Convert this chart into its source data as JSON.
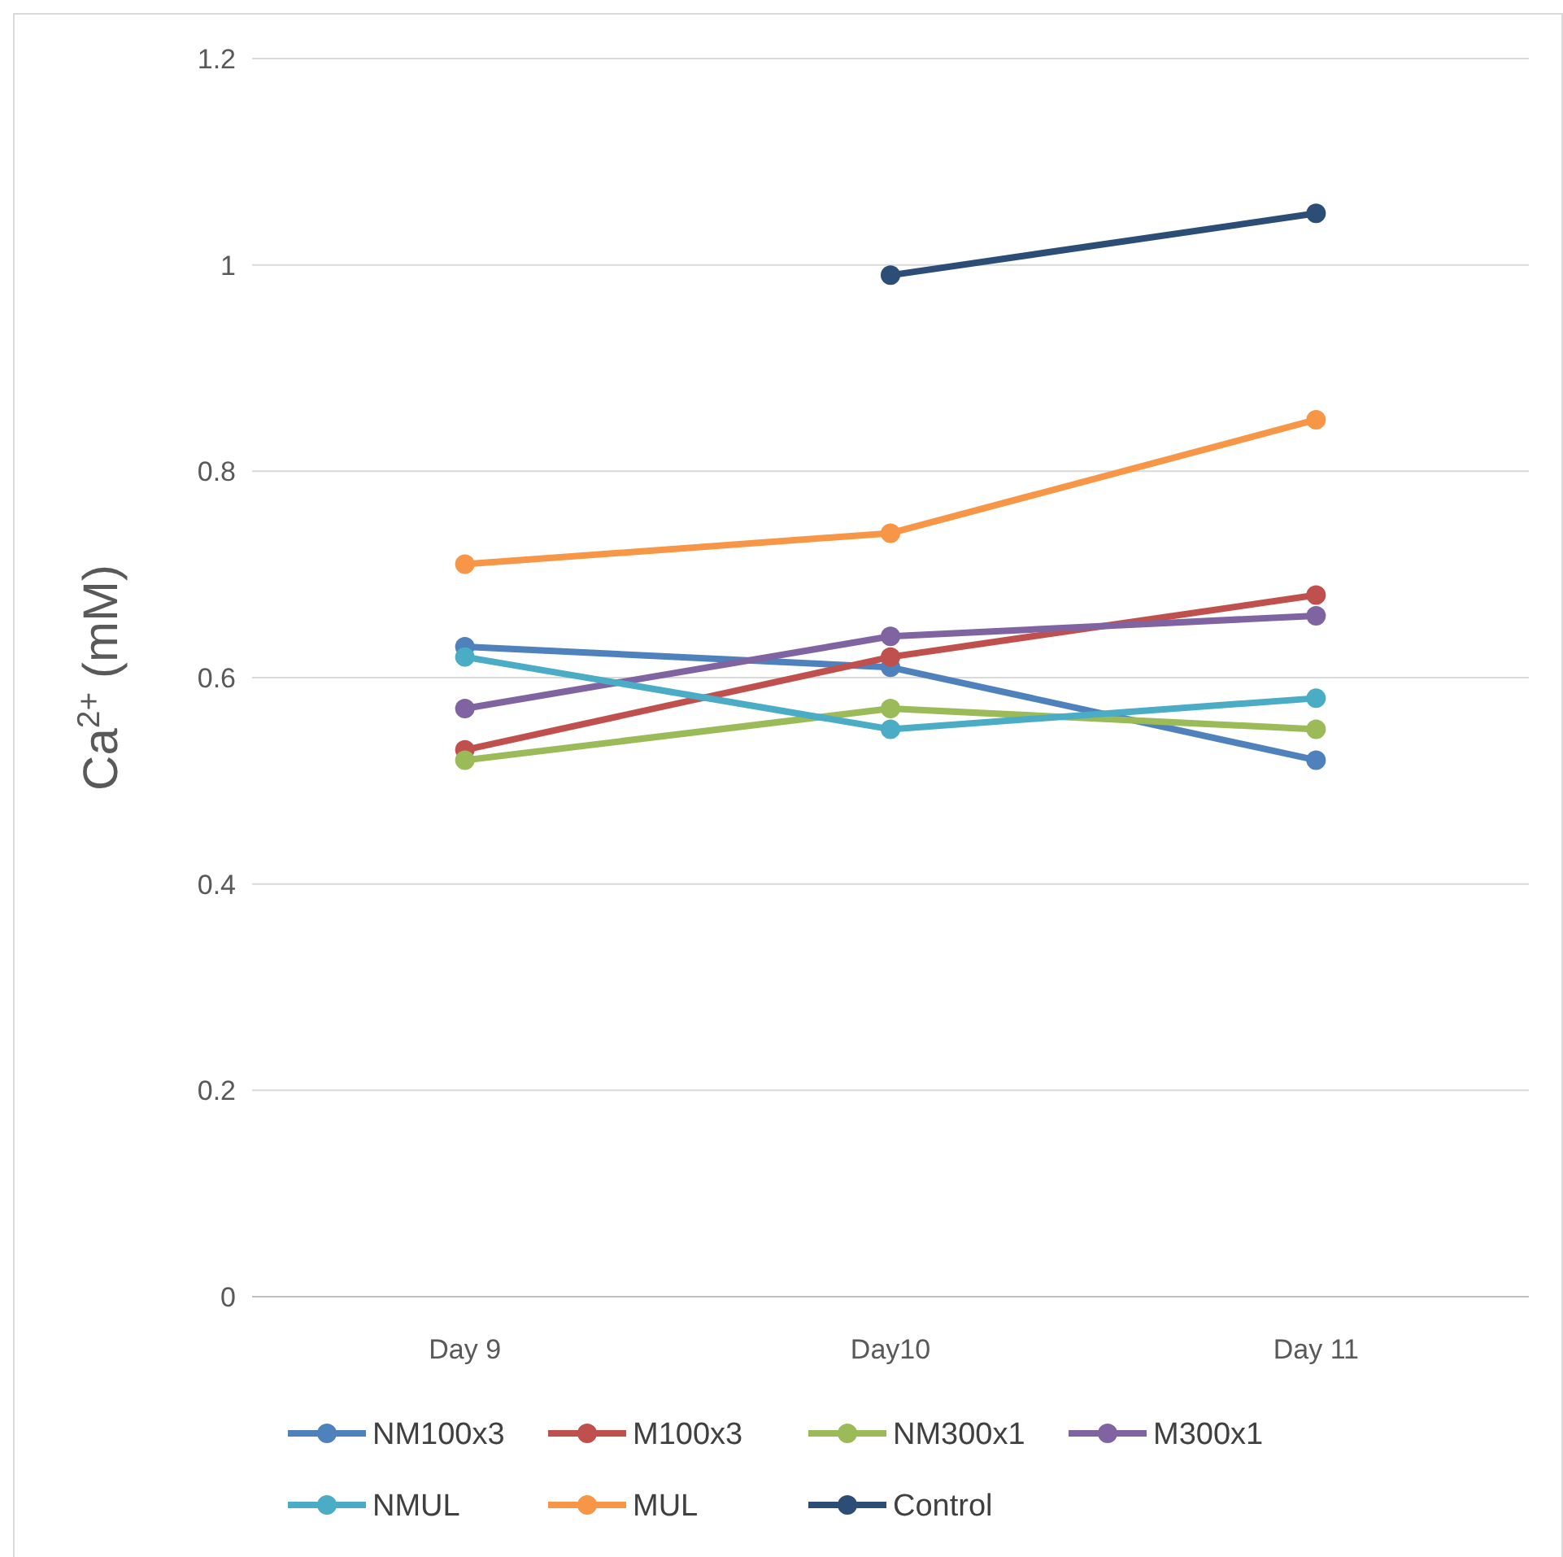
{
  "chart_data": {
    "type": "line",
    "ylabel": "Ca$^{2+}$ (mM)",
    "categories": [
      "Day 9",
      "Day10",
      "Day 11"
    ],
    "ylim": [
      0,
      1.2
    ],
    "yticks": [
      0,
      0.2,
      0.4,
      0.6,
      0.8,
      1,
      1.2
    ],
    "grid": "y",
    "legend": "bottom",
    "marker": "circle",
    "line_style": "solid",
    "series": [
      {
        "name": "NM100x3",
        "color": "#4f81bd",
        "values": [
          0.63,
          0.61,
          0.52
        ]
      },
      {
        "name": "M100x3",
        "color": "#c0504d",
        "values": [
          0.53,
          0.62,
          0.68
        ]
      },
      {
        "name": "NM300x1",
        "color": "#9bbb59",
        "values": [
          0.52,
          0.57,
          0.55
        ]
      },
      {
        "name": "M300x1",
        "color": "#8064a2",
        "values": [
          0.57,
          0.64,
          0.66
        ]
      },
      {
        "name": "NMUL",
        "color": "#4bacc6",
        "values": [
          0.62,
          0.55,
          0.58
        ]
      },
      {
        "name": "MUL",
        "color": "#f79646",
        "values": [
          0.71,
          0.74,
          0.85
        ]
      },
      {
        "name": "Control",
        "color": "#2c4d75",
        "values": [
          null,
          0.99,
          1.05
        ]
      }
    ]
  }
}
